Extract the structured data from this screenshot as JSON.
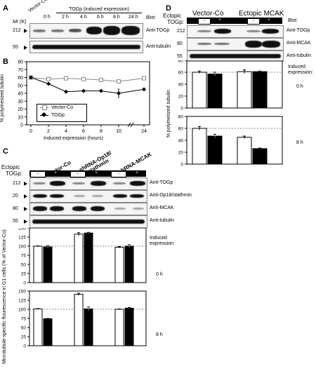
{
  "panels": {
    "A": {
      "letter": "A",
      "mr_label": "Mr (K)",
      "vector_co": "Vector-Co",
      "induced": "TOGp (induced expression)",
      "blot_header": "Blot:",
      "lanes": [
        "0 h",
        "2 h",
        "4 h",
        "6 h",
        "8 h",
        "24 h"
      ],
      "markers": [
        "212",
        "55"
      ],
      "rows": [
        "Anti-TOGp",
        "Anti-tubulin"
      ]
    },
    "B": {
      "letter": "B",
      "ylabel": "% polymerized tubulin",
      "xlabel": "Induced expression (hours)",
      "legend": [
        "Vector-Co",
        "TOGp"
      ]
    },
    "C": {
      "letter": "C",
      "ectopic": "Ectopic",
      "togp": "TOGp:",
      "groups": [
        "Vector-Co",
        "shRNA-Op18/ stathmin",
        "shRNA-MCAK"
      ],
      "signs": [
        "−",
        "+",
        "−",
        "+",
        "−",
        "+"
      ],
      "markers": [
        "212",
        "20",
        "80",
        "55"
      ],
      "rows": [
        "Anti-TOGp",
        "Anti-Op18/stathmin",
        "Anti-MCAK",
        "Anti-tubulin"
      ],
      "ylabel": "Microtubule-specific flourescence in G1 cells (% of Vector-Co)",
      "induced_label": "Induced expression:",
      "time_top": "0 h",
      "time_bottom": "8 h"
    },
    "D": {
      "letter": "D",
      "ectopic": "Ectopic",
      "togp": "TOGp:",
      "groups": [
        "Vector-Co",
        "Ectopic MCAK"
      ],
      "signs": [
        "−",
        "+",
        "−",
        "+"
      ],
      "blot_header": "Blot:",
      "markers": [
        "212",
        "80",
        "55"
      ],
      "rows": [
        "Anti-TOGp",
        "Anti-MCAK",
        "Anti-tubulin"
      ],
      "ylabel": "% polymerized tubulin",
      "induced_label": "Induced expression:",
      "time_top": "0 h",
      "time_bottom": "8 h"
    }
  },
  "chart_data": [
    {
      "type": "line",
      "panel": "B",
      "x": [
        0,
        2,
        4,
        6,
        8,
        10,
        24
      ],
      "xticks": [
        "0",
        "2",
        "4",
        "6",
        "8",
        "10",
        "24"
      ],
      "series": [
        {
          "name": "Vector-Co",
          "values": [
            60,
            58,
            59,
            58,
            57,
            55,
            59
          ]
        },
        {
          "name": "TOGp",
          "values": [
            60,
            52,
            42,
            43,
            43,
            40,
            45
          ]
        }
      ],
      "ylim": [
        0,
        80
      ],
      "yticks": [
        0,
        10,
        20,
        30,
        40,
        50,
        60,
        70,
        80
      ],
      "xlabel": "Induced expression (hours)",
      "ylabel": "% polymerized tubulin"
    },
    {
      "type": "bar",
      "panel": "C-0h",
      "categories": [
        "Vector-Co −",
        "Vector-Co +",
        "shRNA-Op18 −",
        "shRNA-Op18 +",
        "shRNA-MCAK −",
        "shRNA-MCAK +"
      ],
      "values": [
        100,
        98,
        133,
        136,
        97,
        100
      ],
      "ylim": [
        0,
        150
      ],
      "yticks": [
        0,
        25,
        50,
        75,
        100,
        125,
        150
      ]
    },
    {
      "type": "bar",
      "panel": "C-8h",
      "categories": [
        "Vector-Co −",
        "Vector-Co +",
        "shRNA-Op18 −",
        "shRNA-Op18 +",
        "shRNA-MCAK −",
        "shRNA-MCAK +"
      ],
      "values": [
        101,
        74,
        141,
        101,
        100,
        103
      ],
      "ylim": [
        0,
        150
      ],
      "yticks": [
        0,
        25,
        50,
        75,
        100,
        125,
        150
      ]
    },
    {
      "type": "bar",
      "panel": "D-0h",
      "categories": [
        "Vector-Co −",
        "Vector-Co +",
        "Ectopic MCAK −",
        "Ectopic MCAK +"
      ],
      "values": [
        60,
        57,
        61,
        61
      ],
      "ylim": [
        0,
        80
      ],
      "yticks": [
        0,
        20,
        40,
        60,
        80
      ]
    },
    {
      "type": "bar",
      "panel": "D-8h",
      "categories": [
        "Vector-Co −",
        "Vector-Co +",
        "Ectopic MCAK −",
        "Ectopic MCAK +"
      ],
      "values": [
        60,
        47,
        45,
        26
      ],
      "ylim": [
        0,
        80
      ],
      "yticks": [
        0,
        20,
        40,
        60,
        80
      ]
    }
  ]
}
